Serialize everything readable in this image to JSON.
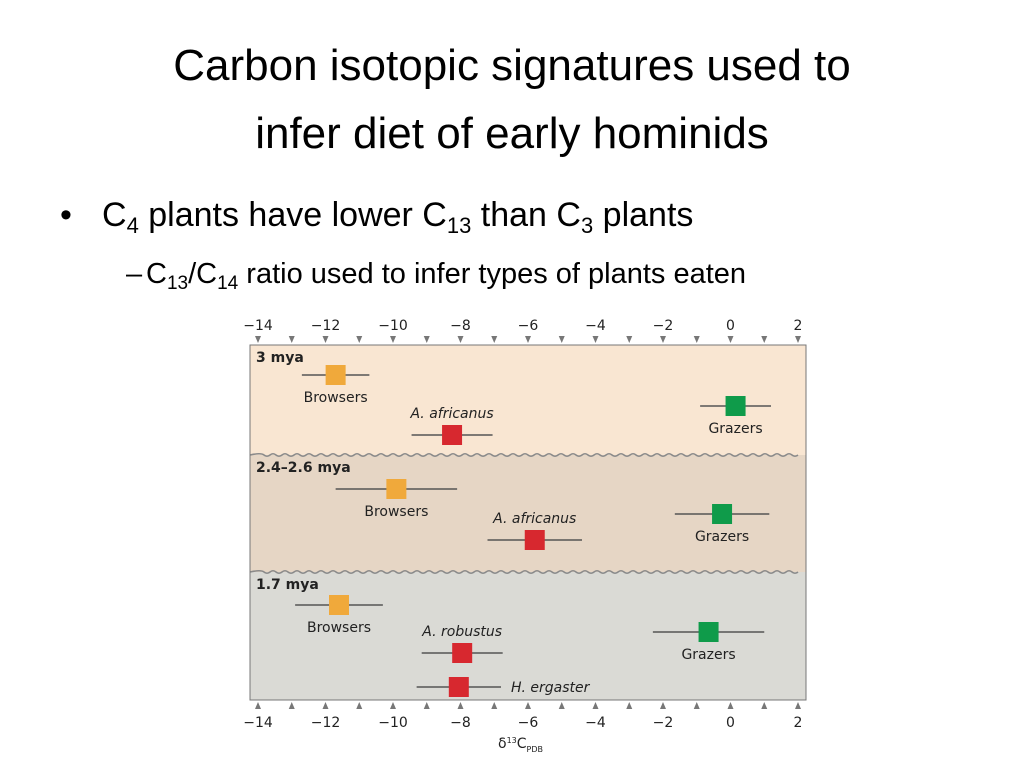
{
  "slide": {
    "title": [
      "Carbon isotopic signatures used to",
      "infer diet of early hominids"
    ],
    "bullet": [
      "C",
      "4",
      " plants have lower C",
      "13",
      " than C",
      "3",
      " plants"
    ],
    "subbullet": [
      "C",
      "13",
      "/C",
      "14",
      " ratio used to infer types of plants eaten"
    ]
  },
  "chart_data": {
    "type": "errorbar",
    "xlabel": [
      "δ",
      "13",
      "C",
      "PDB"
    ],
    "xlim": [
      -14,
      2
    ],
    "xticks": [
      {
        "value": -14,
        "label": "−14"
      },
      {
        "value": -12,
        "label": "−12"
      },
      {
        "value": -10,
        "label": "−10"
      },
      {
        "value": -8,
        "label": "−8"
      },
      {
        "value": -6,
        "label": "−6"
      },
      {
        "value": -4,
        "label": "−4"
      },
      {
        "value": -2,
        "label": "−2"
      },
      0,
      2
    ],
    "xminorticks": [
      -13,
      -11,
      -9,
      -7,
      -5,
      -3,
      -1,
      1
    ],
    "series": [
      {
        "name": "3 mya",
        "color": "#f9e6d2",
        "points": [
          {
            "name": "Browsers",
            "x": -11.7,
            "error": 1.0,
            "color": "#f0a93b"
          },
          {
            "name": "A. africanus",
            "x": -8.25,
            "error": 1.2,
            "color": "#d7282f"
          },
          {
            "name": "Grazers",
            "x": 0.15,
            "error": 1.05,
            "color": "#0f9b4a"
          }
        ]
      },
      {
        "name": "2.4–2.6 mya",
        "color": "#e6d6c5",
        "points": [
          {
            "name": "Browsers",
            "x": -9.9,
            "error": 1.8,
            "color": "#f0a93b"
          },
          {
            "name": "A. africanus",
            "x": -5.8,
            "error": 1.4,
            "color": "#d7282f"
          },
          {
            "name": "Grazers",
            "x": -0.25,
            "error": 1.4,
            "color": "#0f9b4a"
          }
        ]
      },
      {
        "name": "1.7 mya",
        "color": "#dadad5",
        "points": [
          {
            "name": "Browsers",
            "x": -11.6,
            "error": 1.3,
            "color": "#f0a93b"
          },
          {
            "name": "A. robustus",
            "x": -7.95,
            "error": 1.2,
            "color": "#d7282f"
          },
          {
            "name": "Grazers",
            "x": -0.65,
            "error": 1.65,
            "color": "#0f9b4a"
          },
          {
            "name": "H. ergaster",
            "x": -8.05,
            "error": 1.25,
            "color": "#d7282f"
          }
        ]
      }
    ]
  }
}
